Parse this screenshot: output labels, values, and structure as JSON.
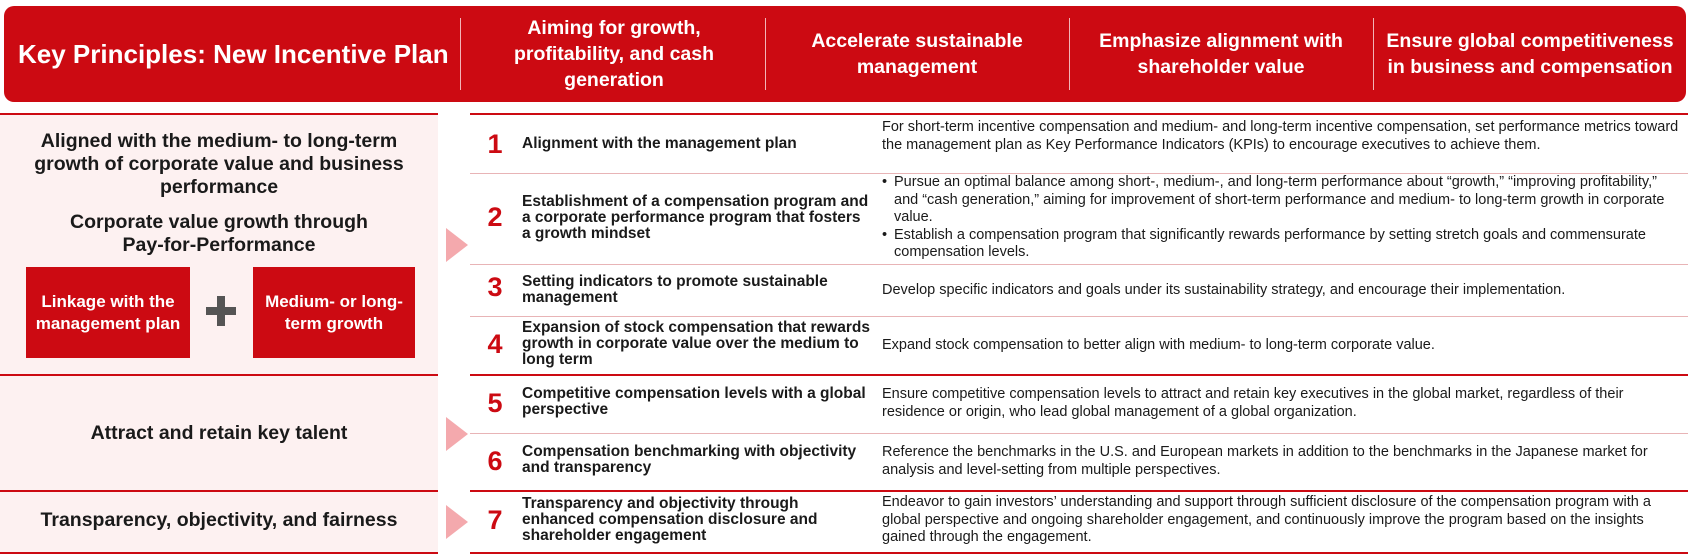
{
  "banner": {
    "title": "Key Principles: New Incentive Plan",
    "goals": [
      "Aiming for growth, profitability, and cash generation",
      "Accelerate sustainable management",
      "Emphasize alignment with shareholder value",
      "Ensure global competitiveness in business and compensation"
    ]
  },
  "left": {
    "section1_heading": "Aligned with the medium- to long-term growth of corporate value and business performance",
    "section1_sub": "Corporate value growth through Pay-for-Performance",
    "box_left": "Linkage with the management plan",
    "box_right": "Medium- or long-term growth",
    "section2": "Attract and retain key talent",
    "section3": "Transparency, objectivity, and fairness"
  },
  "rows": [
    {
      "num": "1",
      "title": "Alignment with the management plan",
      "desc": "For short-term incentive compensation and medium- and long-term incentive compensation, set performance metrics toward the management plan as Key Performance Indicators (KPIs) to encourage executives to achieve them."
    },
    {
      "num": "2",
      "title": "Establishment of a compensation program and a corporate performance program that fosters a growth mindset",
      "bullets": [
        "Pursue an optimal balance among short-, medium-, and long-term performance about “growth,” “improving profitability,” and “cash generation,” aiming for improvement of short-term performance and medium- to long-term growth in corporate value.",
        "Establish a compensation program that significantly rewards performance by setting stretch goals and commensurate compensation levels."
      ]
    },
    {
      "num": "3",
      "title": "Setting indicators to promote sustainable management",
      "desc": "Develop specific indicators and goals under its sustainability strategy,  and encourage their implementation."
    },
    {
      "num": "4",
      "title": "Expansion of stock compensation that rewards growth in corporate value over the medium to long term",
      "desc": "Expand stock compensation to better align with medium- to long-term corporate value."
    },
    {
      "num": "5",
      "title": "Competitive compensation levels with a global perspective",
      "desc": "Ensure competitive compensation levels to attract and retain key executives in the global market, regardless of their residence or origin, who lead global management of a global organization."
    },
    {
      "num": "6",
      "title": "Compensation benchmarking with objectivity and transparency",
      "desc": "Reference the benchmarks in the U.S. and European markets in addition to the benchmarks in the Japanese market for analysis and level-setting from multiple perspectives."
    },
    {
      "num": "7",
      "title": "Transparency and objectivity through enhanced compensation disclosure and shareholder engagement",
      "desc": "Endeavor to gain investors’ understanding and support through sufficient disclosure of the compensation program with a global perspective and ongoing shareholder engagement, and continuously improve the program based on the insights gained through the engagement."
    }
  ],
  "colors": {
    "accent": "#cc0a12",
    "panel": "#fdf1f1",
    "arrow": "#f4a9ad"
  }
}
